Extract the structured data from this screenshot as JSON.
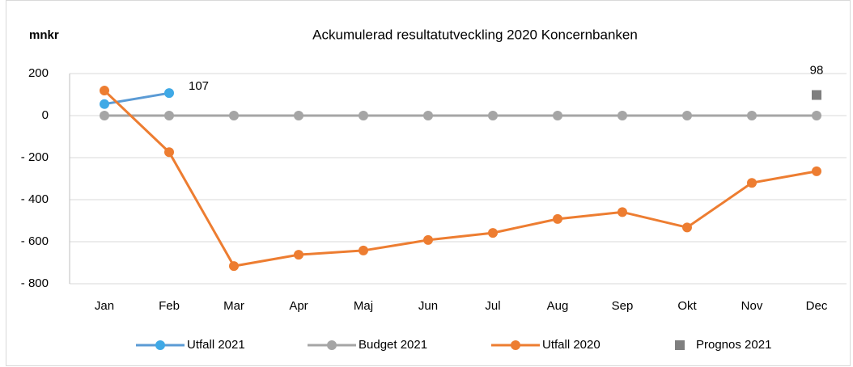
{
  "chart_data": {
    "type": "line",
    "title": "Ackumulerad resultatutveckling 2020 Koncernbanken",
    "ylabel": "mnkr",
    "categories": [
      "Jan",
      "Feb",
      "Mar",
      "Apr",
      "Maj",
      "Jun",
      "Jul",
      "Aug",
      "Sep",
      "Okt",
      "Nov",
      "Dec"
    ],
    "series": [
      {
        "name": "Utfall 2021",
        "color": "#3fa9e6",
        "line_color": "#5b9bd5",
        "marker": "circle",
        "line": true,
        "values": [
          55,
          107,
          null,
          null,
          null,
          null,
          null,
          null,
          null,
          null,
          null,
          null
        ],
        "value_labels": [
          null,
          "107",
          null,
          null,
          null,
          null,
          null,
          null,
          null,
          null,
          null,
          null
        ]
      },
      {
        "name": "Budget 2021",
        "color": "#a5a5a5",
        "line_color": "#a5a5a5",
        "marker": "circle",
        "line": true,
        "values": [
          0,
          0,
          0,
          0,
          0,
          0,
          0,
          0,
          0,
          0,
          0,
          0
        ]
      },
      {
        "name": "Utfall 2020",
        "color": "#ed7d31",
        "line_color": "#ed7d31",
        "marker": "circle",
        "line": true,
        "values": [
          119,
          -174,
          -716,
          -662,
          -642,
          -592,
          -558,
          -492,
          -459,
          -532,
          -320,
          -265
        ]
      },
      {
        "name": "Prognos 2021",
        "color": "#7f7f7f",
        "marker": "square",
        "line": false,
        "values": [
          null,
          null,
          null,
          null,
          null,
          null,
          null,
          null,
          null,
          null,
          null,
          98
        ],
        "value_labels": [
          null,
          null,
          null,
          null,
          null,
          null,
          null,
          null,
          null,
          null,
          null,
          "98"
        ]
      }
    ],
    "ylim": [
      -800,
      200
    ],
    "yticks": [
      {
        "value": -800,
        "label": "- 800"
      },
      {
        "value": -600,
        "label": "- 600"
      },
      {
        "value": -400,
        "label": "- 400"
      },
      {
        "value": -200,
        "label": "- 200"
      },
      0,
      200
    ],
    "grid": true,
    "legend": "bottom"
  }
}
